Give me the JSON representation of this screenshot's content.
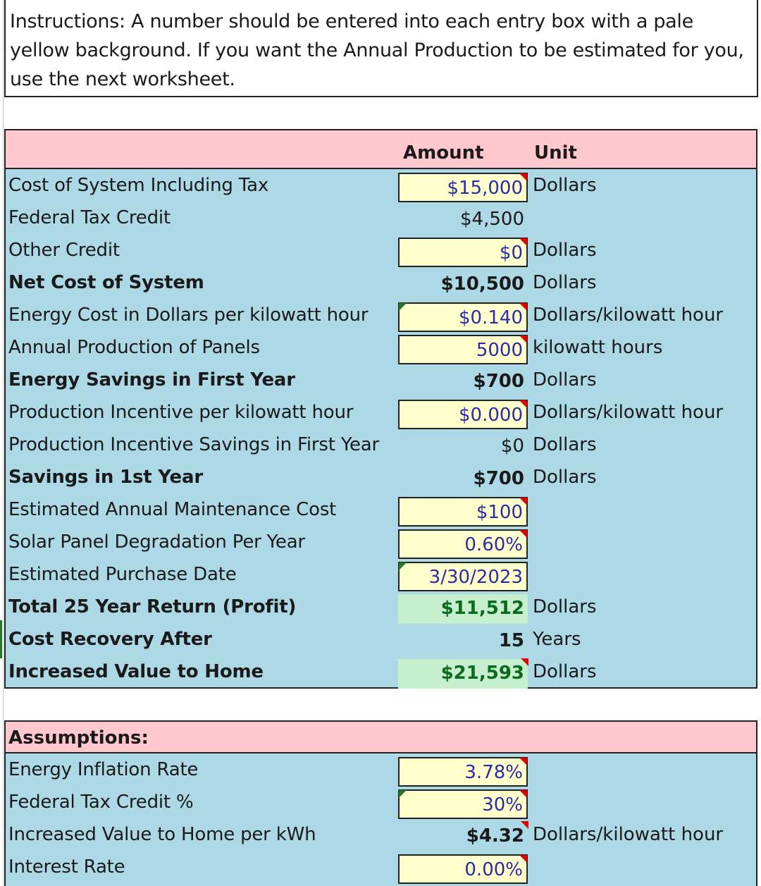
{
  "instructions": {
    "line1": "Instructions: A number should be entered into each entry box with a pale",
    "line2": "yellow background.  If you want the Annual Production to be estimated for you,",
    "line3": "use the next worksheet."
  },
  "header": {
    "amount": "Amount",
    "unit": "Unit"
  },
  "rows": [
    {
      "label": "Cost of System Including Tax",
      "value": "$15,000",
      "unit": "Dollars"
    },
    {
      "label": "Federal Tax Credit",
      "value": "$4,500",
      "unit": ""
    },
    {
      "label": "Other Credit",
      "value": "$0",
      "unit": "Dollars"
    },
    {
      "label": "Net Cost of System",
      "value": "$10,500",
      "unit": "Dollars"
    },
    {
      "label": "Energy Cost in Dollars per kilowatt hour",
      "value": "$0.140",
      "unit": "Dollars/kilowatt hour"
    },
    {
      "label": "Annual Production of Panels",
      "value": "5000",
      "unit": "kilowatt hours"
    },
    {
      "label": "Energy Savings in First Year",
      "value": "$700",
      "unit": "Dollars"
    },
    {
      "label": "Production Incentive per kilowatt hour",
      "value": "$0.000",
      "unit": "Dollars/kilowatt hour"
    },
    {
      "label": "Production Incentive Savings in First Year",
      "value": "$0",
      "unit": "Dollars"
    },
    {
      "label": "Savings in 1st Year",
      "value": "$700",
      "unit": "Dollars"
    },
    {
      "label": "Estimated Annual Maintenance Cost",
      "value": "$100",
      "unit": ""
    },
    {
      "label": "Solar Panel Degradation Per Year",
      "value": "0.60%",
      "unit": ""
    },
    {
      "label": "Estimated Purchase Date",
      "value": "3/30/2023",
      "unit": ""
    },
    {
      "label": "Total 25 Year Return (Profit)",
      "value": "$11,512",
      "unit": "Dollars"
    },
    {
      "label": "Cost Recovery After",
      "value": "15",
      "unit": "Years"
    },
    {
      "label": "Increased Value to Home",
      "value": "$21,593",
      "unit": "Dollars"
    }
  ],
  "assumptions": {
    "title": "Assumptions:",
    "rows": [
      {
        "label": "Energy Inflation Rate",
        "value": "3.78%",
        "unit": ""
      },
      {
        "label": "Federal Tax Credit %",
        "value": "30%",
        "unit": ""
      },
      {
        "label": "Increased Value to Home per kWh",
        "value": "$4.32",
        "unit": "Dollars/kilowatt hour"
      },
      {
        "label": "Interest Rate",
        "value": "0.00%",
        "unit": ""
      }
    ]
  },
  "colors": {
    "panel_bg": "#add8e6",
    "header_bg": "#ffc7ce",
    "input_bg": "#ffffcc",
    "input_text": "#2b2ba8",
    "result_bg": "#c6efce",
    "result_text": "#0d6b1f",
    "comment_marker": "#e00000",
    "error_marker": "#1f7a2a"
  }
}
